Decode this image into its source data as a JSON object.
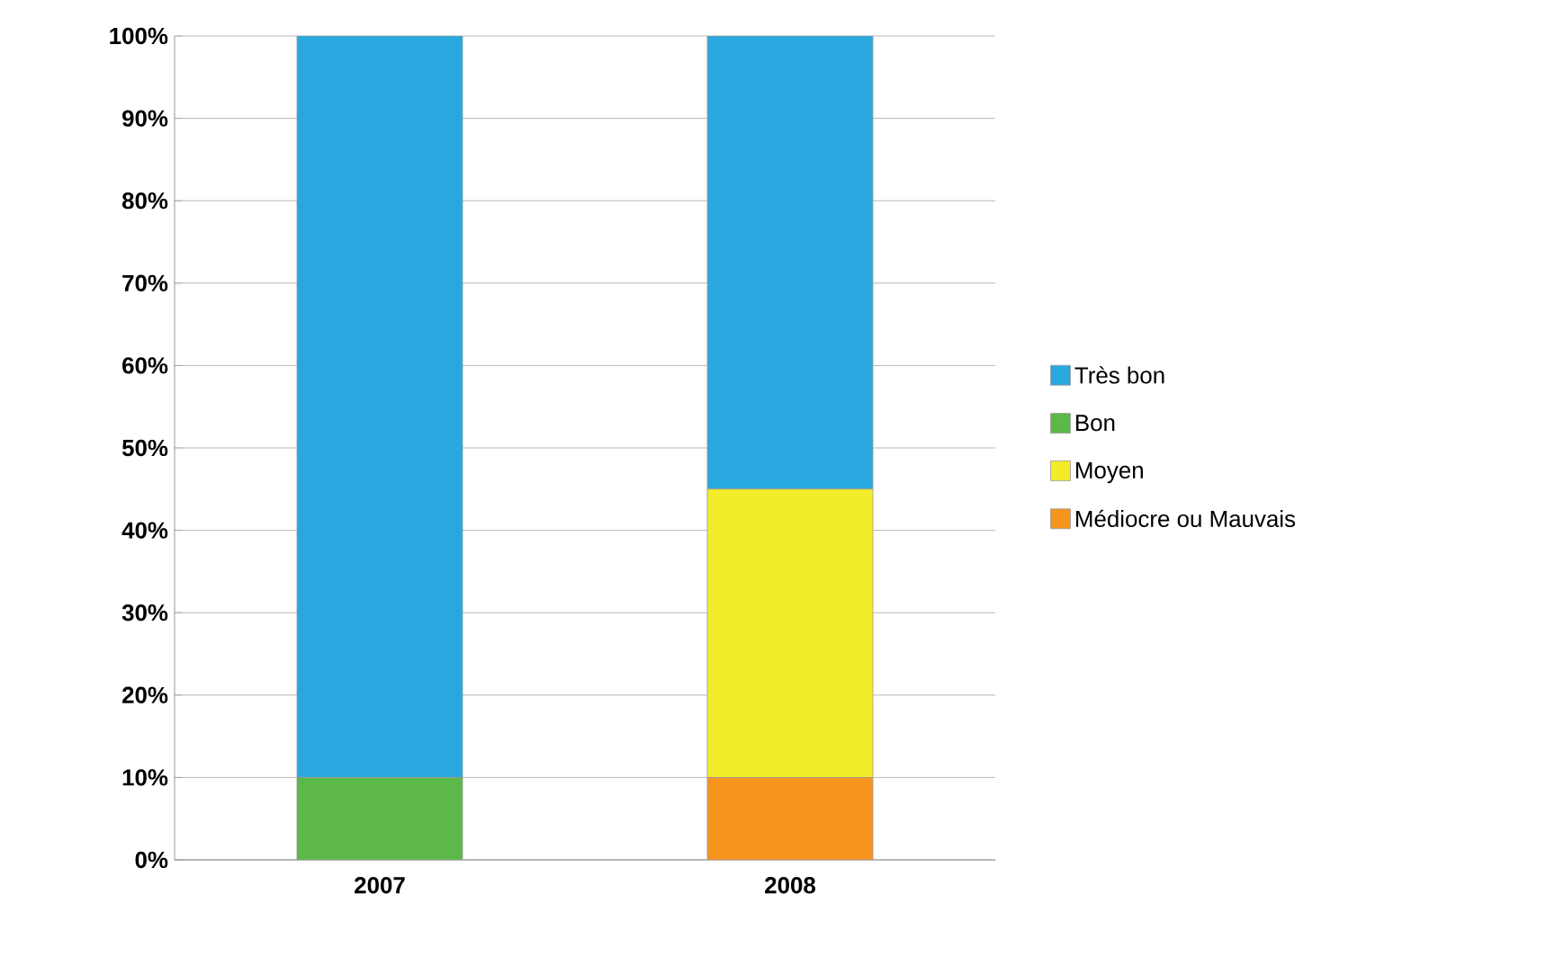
{
  "chart_data": {
    "type": "bar",
    "stacked": true,
    "categories": [
      "2007",
      "2008"
    ],
    "series": [
      {
        "name": "Médiocre ou Mauvais",
        "color": "#f7941d",
        "values": [
          0,
          10
        ]
      },
      {
        "name": "Moyen",
        "color": "#f2ec2a",
        "values": [
          0,
          35
        ]
      },
      {
        "name": "Bon",
        "color": "#5cb848",
        "values": [
          10,
          0
        ]
      },
      {
        "name": "Très bon",
        "color": "#29a8e0",
        "values": [
          90,
          55
        ]
      }
    ],
    "ylim": [
      0,
      100
    ],
    "yticks": [
      {
        "value": 0,
        "label": "0%"
      },
      {
        "value": 10,
        "label": "10%"
      },
      {
        "value": 20,
        "label": "20%"
      },
      {
        "value": 30,
        "label": "30%"
      },
      {
        "value": 40,
        "label": "40%"
      },
      {
        "value": 50,
        "label": "50%"
      },
      {
        "value": 60,
        "label": "60%"
      },
      {
        "value": 70,
        "label": "70%"
      },
      {
        "value": 80,
        "label": "80%"
      },
      {
        "value": 90,
        "label": "90%"
      },
      {
        "value": 100,
        "label": "100%"
      }
    ],
    "grid": "y",
    "legend": "right"
  }
}
